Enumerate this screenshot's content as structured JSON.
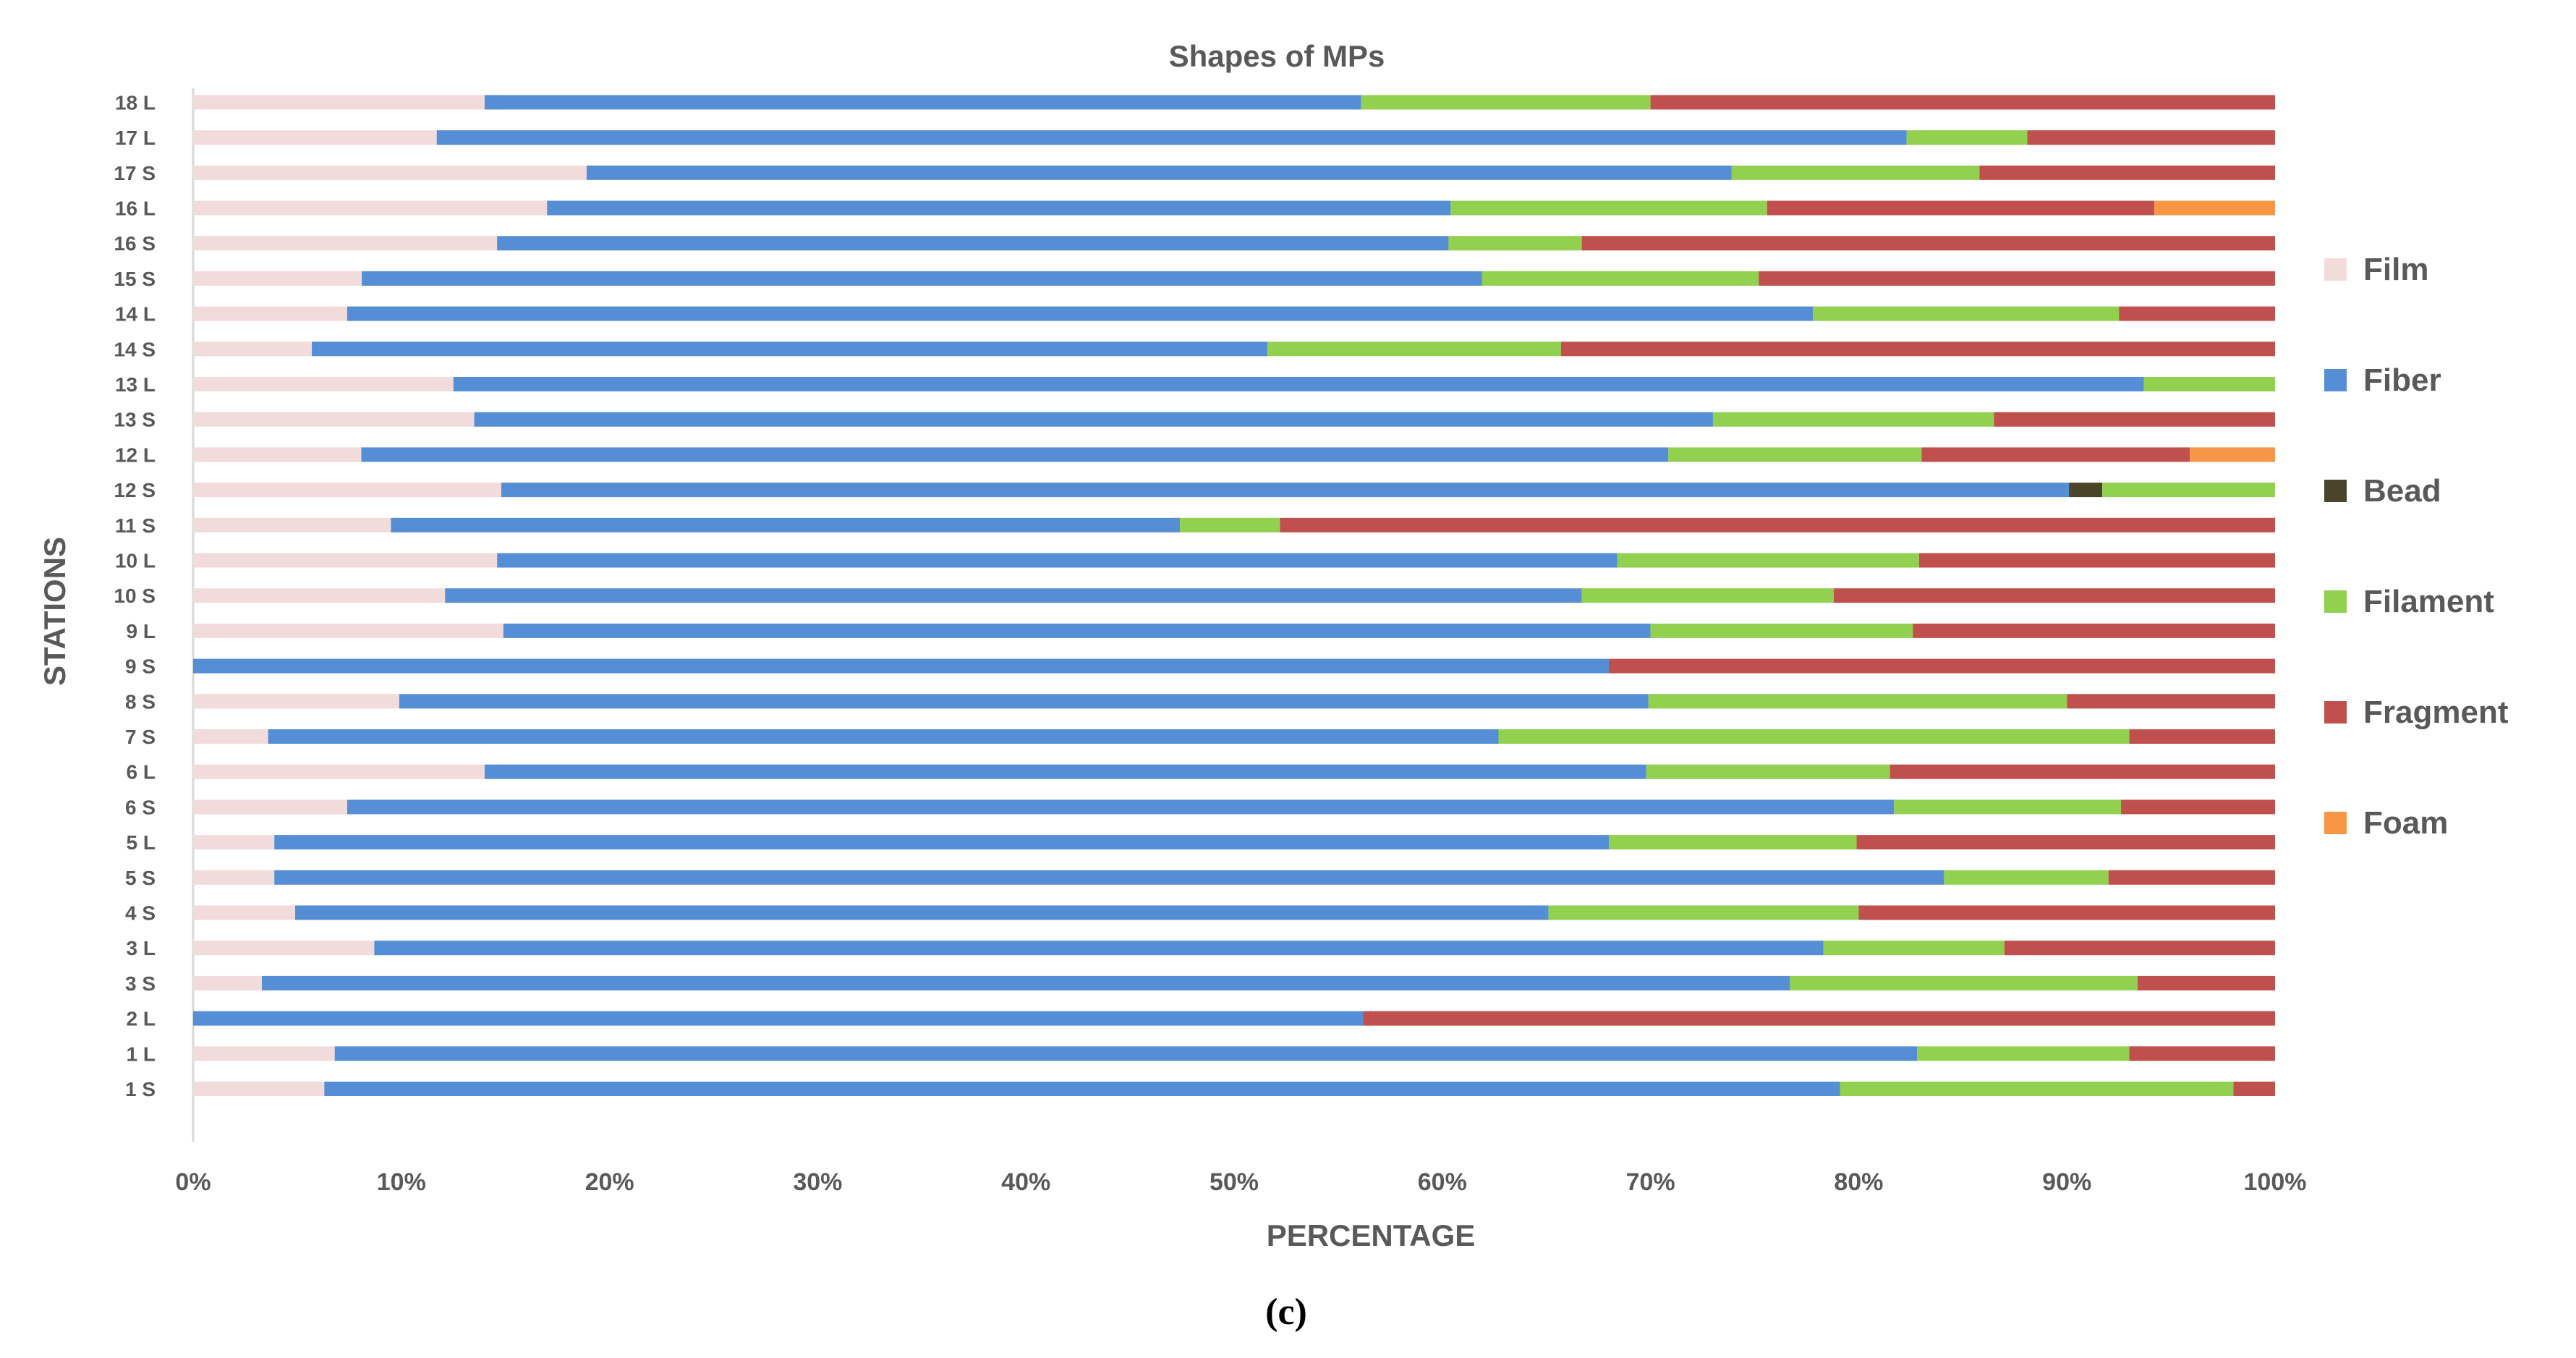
{
  "chart_data": {
    "type": "bar",
    "orientation": "horizontal",
    "stacked": "percent",
    "title": "Shapes of MPs",
    "xlabel": "PERCENTAGE",
    "ylabel": "STATIONS",
    "caption": "(c)",
    "xlim": [
      0,
      100
    ],
    "xticks": [
      "0%",
      "10%",
      "20%",
      "30%",
      "40%",
      "50%",
      "60%",
      "70%",
      "80%",
      "90%",
      "100%"
    ],
    "legend_position": "right",
    "grid": false,
    "categories": [
      "1 S",
      "1 L",
      "2 L",
      "3 S",
      "3 L",
      "4 S",
      "5 S",
      "5 L",
      "6 S",
      "6 L",
      "7 S",
      "8 S",
      "9 S",
      "9 L",
      "10 S",
      "10 L",
      "11 S",
      "12 S",
      "12 L",
      "13 S",
      "13 L",
      "14 S",
      "14 L",
      "15 S",
      "16 S",
      "16 L",
      "17 S",
      "17 L",
      "18 L"
    ],
    "series": [
      {
        "name": "Film",
        "color": "#f2dcdb",
        "values": [
          6.3,
          6.8,
          0,
          3.3,
          8.7,
          4.9,
          3.9,
          3.9,
          7.4,
          14.0,
          3.6,
          9.9,
          0,
          14.9,
          12.1,
          14.6,
          9.5,
          14.8,
          7.9,
          13.5,
          12.5,
          5.7,
          7.4,
          8.1,
          14.6,
          17.0,
          18.9,
          11.7,
          14.0
        ]
      },
      {
        "name": "Fiber",
        "color": "#558ed5",
        "values": [
          72.8,
          76.0,
          56.2,
          73.4,
          69.6,
          60.2,
          80.2,
          64.1,
          74.3,
          55.8,
          59.1,
          60.0,
          68.0,
          55.1,
          54.6,
          53.8,
          37.9,
          75.3,
          61.4,
          59.5,
          81.2,
          45.9,
          70.4,
          53.8,
          45.7,
          43.4,
          55.0,
          70.6,
          42.1
        ]
      },
      {
        "name": "Bead",
        "color": "#4a452a",
        "values": [
          0,
          0,
          0,
          0,
          0,
          0,
          0,
          0,
          0,
          0,
          0,
          0,
          0,
          0,
          0,
          0,
          0,
          1.6,
          0,
          0,
          0,
          0,
          0,
          0,
          0,
          0,
          0,
          0,
          0
        ]
      },
      {
        "name": "Filament",
        "color": "#92d050",
        "values": [
          18.9,
          10.2,
          0,
          16.7,
          8.7,
          14.9,
          7.9,
          11.9,
          10.9,
          11.7,
          30.3,
          20.1,
          0,
          12.6,
          12.1,
          14.5,
          4.8,
          8.3,
          11.9,
          13.5,
          6.3,
          14.1,
          14.7,
          13.3,
          6.4,
          15.2,
          11.9,
          5.8,
          13.9
        ]
      },
      {
        "name": "Fragment",
        "color": "#c0504d",
        "values": [
          2.0,
          7.0,
          43.8,
          6.6,
          13.0,
          20.0,
          8.0,
          20.1,
          7.4,
          18.5,
          7.0,
          10.0,
          32.0,
          17.4,
          21.2,
          17.1,
          47.8,
          0,
          12.6,
          13.5,
          0,
          34.3,
          7.5,
          24.8,
          33.3,
          18.6,
          14.2,
          11.9,
          30.0
        ]
      },
      {
        "name": "Foam",
        "color": "#f79646",
        "values": [
          0,
          0,
          0,
          0,
          0,
          0,
          0,
          0,
          0,
          0,
          0,
          0,
          0,
          0,
          0,
          0,
          0,
          0,
          4.0,
          0,
          0,
          0,
          0,
          0,
          0,
          5.8,
          0,
          0,
          0
        ]
      }
    ]
  }
}
